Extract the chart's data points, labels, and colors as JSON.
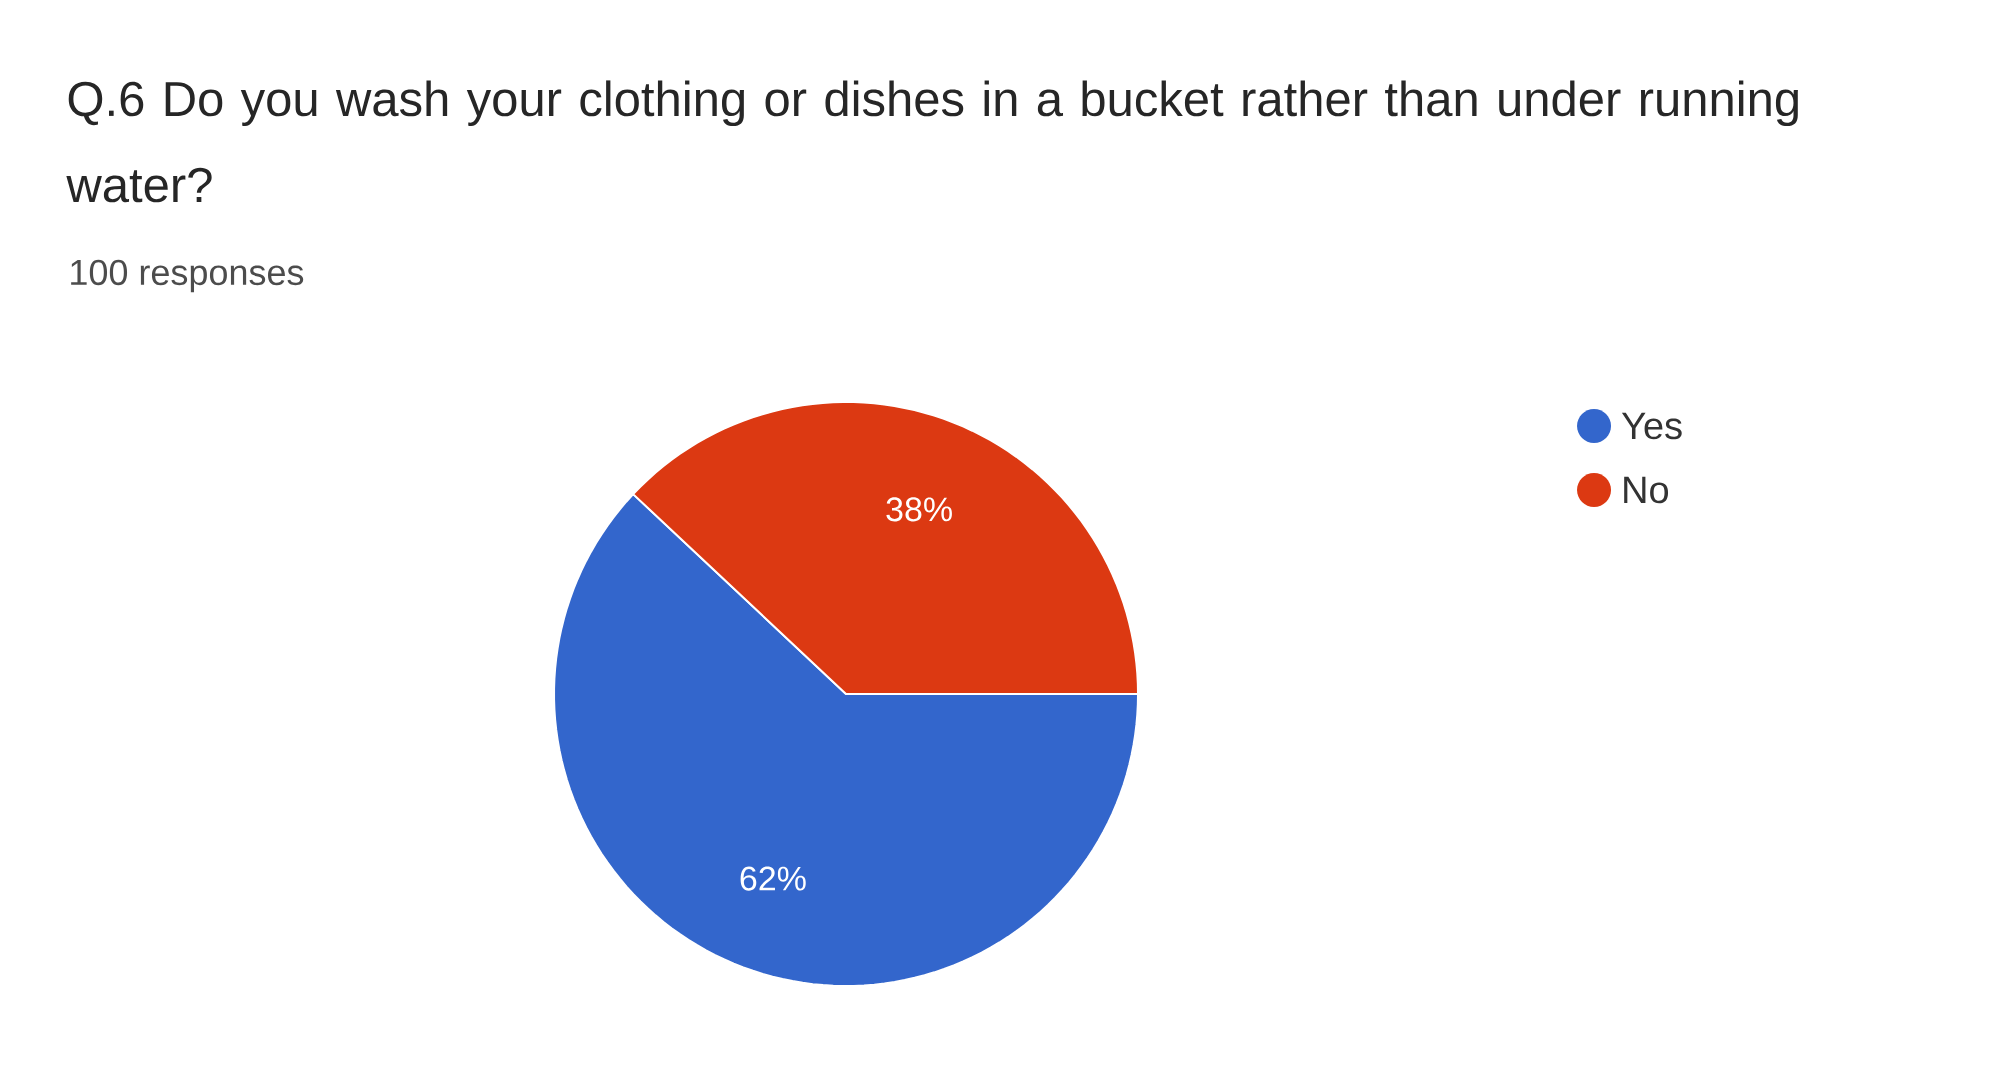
{
  "chart_data": {
    "type": "pie",
    "title": "Q.6  Do you wash your clothing or dishes in a bucket rather than under running water?",
    "subtitle": "100 responses",
    "categories": [
      "Yes",
      "No"
    ],
    "values": [
      62,
      38
    ],
    "colors": [
      "#3366cc",
      "#dc3912"
    ],
    "value_labels": [
      "62%",
      "38%"
    ],
    "legend": "right"
  }
}
